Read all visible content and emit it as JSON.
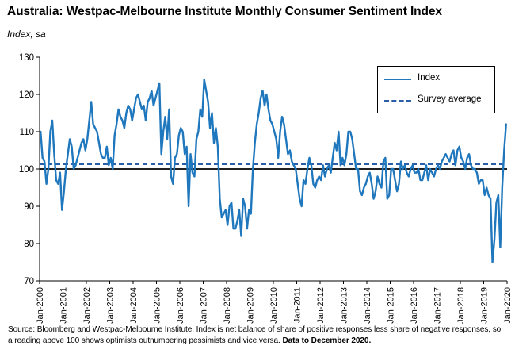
{
  "title": "Australia: Westpac-Melbourne Institute Monthly Consumer Sentiment Index",
  "subtitle": "Index, sa",
  "source": {
    "text": "Source: Bloomberg and Westpac-Melbourne Institute.  Index is net balance of share of positive responses less share of negative responses, so a reading above 100 shows optimists outnumbering pessimists and vice versa.",
    "bold": "Data to December 2020."
  },
  "legend": {
    "index_label": "Index",
    "average_label": "Survey average"
  },
  "colors": {
    "series": "#1f77bd",
    "average": "#2a5ea8",
    "baseline": "#000000"
  },
  "chart_data": {
    "type": "line",
    "ylim": [
      70,
      130
    ],
    "yticks": [
      70,
      80,
      90,
      100,
      110,
      120,
      130
    ],
    "xticks": [
      "Jan-2000",
      "Jan-2001",
      "Jan-2002",
      "Jan-2003",
      "Jan-2004",
      "Jan-2005",
      "Jan-2006",
      "Jan-2007",
      "Jan-2008",
      "Jan-2009",
      "Jan-2010",
      "Jan-2011",
      "Jan-2012",
      "Jan-2013",
      "Jan-2014",
      "Jan-2015",
      "Jan-2016",
      "Jan-2017",
      "Jan-2018",
      "Jan-2019",
      "Jan-2020"
    ],
    "x_start": "Jan-2000",
    "x_end": "Dec-2020",
    "baseline": 100,
    "survey_average": 101.3,
    "series": [
      {
        "name": "Index",
        "values": [
          110,
          103,
          102,
          96,
          100,
          110,
          113,
          104,
          97,
          96,
          99,
          89,
          94,
          100,
          104,
          108,
          106,
          100,
          101,
          103,
          105,
          107,
          108,
          105,
          108,
          113,
          118,
          112,
          111,
          110,
          107,
          104,
          103,
          103,
          106,
          101,
          103,
          100,
          109,
          112,
          116,
          114,
          113,
          111,
          115,
          117,
          116,
          113,
          116,
          119,
          120,
          118,
          116,
          117,
          113,
          118,
          119,
          121,
          117,
          119,
          121,
          123,
          104,
          110,
          114,
          108,
          116,
          98,
          96,
          103,
          104,
          109,
          111,
          110,
          104,
          106,
          90,
          104,
          99,
          98,
          108,
          110,
          116,
          114,
          124,
          121,
          118,
          111,
          115,
          107,
          111,
          106,
          92,
          87,
          88,
          89,
          85,
          90,
          91,
          84,
          84,
          86,
          89,
          82,
          92,
          90,
          84,
          89,
          88,
          100,
          107,
          112,
          115,
          119,
          121,
          117,
          120,
          116,
          113,
          112,
          110,
          108,
          103,
          110,
          114,
          112,
          108,
          104,
          105,
          102,
          101,
          100,
          96,
          92,
          90,
          97,
          96,
          100,
          103,
          101,
          96,
          95,
          97,
          98,
          97,
          101,
          98,
          100,
          101,
          99,
          103,
          107,
          105,
          110,
          101,
          103,
          101,
          104,
          110,
          110,
          108,
          104,
          100,
          100,
          94,
          93,
          95,
          96,
          98,
          99,
          96,
          92,
          94,
          98,
          96,
          95,
          102,
          103,
          92,
          93,
          100,
          100,
          97,
          94,
          96,
          102,
          100,
          101,
          99,
          98,
          100,
          101,
          99,
          99,
          100,
          97,
          97,
          99,
          101,
          97,
          100,
          99,
          98,
          100,
          101,
          100,
          102,
          103,
          104,
          103,
          102,
          104,
          105,
          101,
          105,
          106,
          103,
          102,
          100,
          103,
          104,
          101,
          100,
          100,
          99,
          96,
          97,
          97,
          93,
          95,
          93,
          92,
          75,
          81,
          91,
          93,
          79,
          95,
          105,
          112
        ]
      }
    ]
  }
}
